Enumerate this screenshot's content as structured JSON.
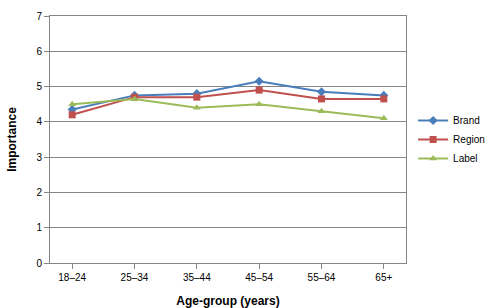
{
  "chart_data": {
    "type": "line",
    "x_label": "Age-group (years)",
    "y_label": "Importance",
    "categories": [
      "18–24",
      "25–34",
      "35–44",
      "45–54",
      "55–64",
      "65+"
    ],
    "series": [
      {
        "name": "Brand",
        "color": "#4a7ebb",
        "marker": "diamond",
        "line_style": "solid",
        "values": [
          4.35,
          4.75,
          4.8,
          5.15,
          4.85,
          4.75
        ]
      },
      {
        "name": "Region",
        "color": "#c0504d",
        "marker": "square",
        "line_style": "solid",
        "values": [
          4.2,
          4.7,
          4.7,
          4.9,
          4.65,
          4.65
        ]
      },
      {
        "name": "Label",
        "color": "#9bbb59",
        "marker": "triangle-up",
        "line_style": "solid",
        "values": [
          4.5,
          4.65,
          4.4,
          4.5,
          4.3,
          4.1
        ]
      }
    ],
    "ylim": [
      0,
      7
    ],
    "yticks": [
      0,
      1,
      2,
      3,
      4,
      5,
      6,
      7
    ],
    "grid": true,
    "legend": "right"
  }
}
